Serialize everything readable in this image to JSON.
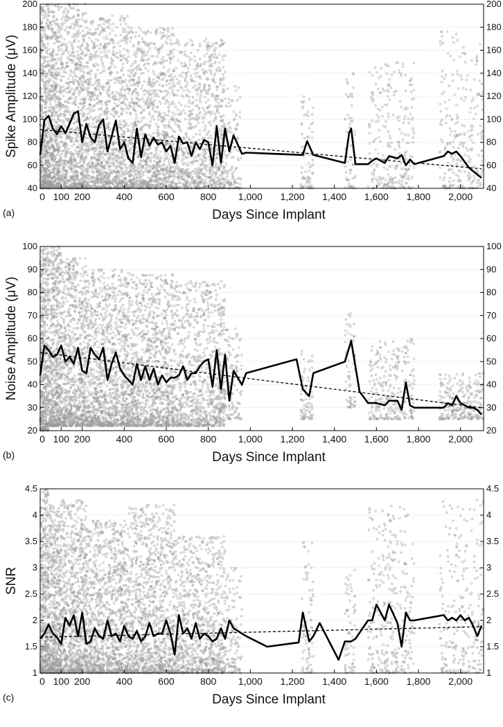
{
  "chart_data": [
    {
      "type": "scatter",
      "panel_label": "(a)",
      "xlabel": "Days Since Implant",
      "ylabel": "Spike Amplitude (μV)",
      "xlim": [
        0,
        2110
      ],
      "ylim": [
        40,
        200
      ],
      "grid": true,
      "x_ticks": [
        0,
        100,
        200,
        400,
        600,
        800,
        1000,
        1200,
        1400,
        1600,
        1800,
        2000
      ],
      "x_tick_labels": [
        "0",
        "100",
        "200",
        "400",
        "600",
        "800",
        "1,000",
        "1,200",
        "1,400",
        "1,600",
        "1,800",
        "2,000"
      ],
      "y_ticks": [
        40,
        60,
        80,
        100,
        120,
        140,
        160,
        180,
        200
      ],
      "y_tick_labels": [
        "40",
        "60",
        "80",
        "100",
        "120",
        "140",
        "160",
        "180",
        "200"
      ],
      "right_axis_ticks": true,
      "colors": {
        "scatter": "#9a9a9a",
        "mean_line": "#000000",
        "trend_line": "#000000"
      },
      "scatter_clusters": [
        {
          "x": [
            0,
            40
          ],
          "y": [
            40,
            200
          ],
          "density": 1.0
        },
        {
          "x": [
            40,
            100
          ],
          "y": [
            40,
            200
          ],
          "density": 0.8
        },
        {
          "x": [
            100,
            220
          ],
          "y": [
            40,
            200
          ],
          "density": 0.55
        },
        {
          "x": [
            220,
            420
          ],
          "y": [
            40,
            190
          ],
          "density": 0.45
        },
        {
          "x": [
            420,
            640
          ],
          "y": [
            40,
            180
          ],
          "density": 0.4
        },
        {
          "x": [
            640,
            880
          ],
          "y": [
            40,
            170
          ],
          "density": 0.3
        },
        {
          "x": [
            880,
            960
          ],
          "y": [
            40,
            130
          ],
          "density": 0.12
        },
        {
          "x": [
            1240,
            1300
          ],
          "y": [
            40,
            120
          ],
          "density": 0.1
        },
        {
          "x": [
            1450,
            1500
          ],
          "y": [
            40,
            140
          ],
          "density": 0.1
        },
        {
          "x": [
            1560,
            1780
          ],
          "y": [
            40,
            150
          ],
          "density": 0.1
        },
        {
          "x": [
            1900,
            2110
          ],
          "y": [
            40,
            180
          ],
          "density": 0.1
        }
      ],
      "mean_line": {
        "x": [
          0,
          20,
          40,
          60,
          80,
          100,
          120,
          140,
          160,
          180,
          200,
          220,
          240,
          260,
          280,
          300,
          320,
          340,
          360,
          380,
          400,
          420,
          440,
          460,
          480,
          500,
          520,
          540,
          560,
          580,
          600,
          620,
          640,
          660,
          680,
          700,
          720,
          740,
          760,
          780,
          800,
          820,
          840,
          860,
          880,
          900,
          920,
          960,
          980,
          1250,
          1270,
          1300,
          1450,
          1470,
          1480,
          1500,
          1560,
          1580,
          1600,
          1640,
          1660,
          1700,
          1720,
          1740,
          1760,
          1780,
          1920,
          1940,
          1960,
          1980,
          2000,
          2020,
          2040,
          2060,
          2080,
          2100
        ],
        "y": [
          69,
          99,
          103,
          92,
          87,
          94,
          88,
          96,
          105,
          107,
          80,
          96,
          84,
          80,
          95,
          100,
          72,
          85,
          99,
          74,
          80,
          66,
          62,
          92,
          67,
          87,
          77,
          84,
          78,
          80,
          72,
          77,
          62,
          85,
          79,
          80,
          68,
          80,
          74,
          82,
          80,
          60,
          94,
          62,
          92,
          72,
          86,
          70,
          71,
          69,
          81,
          69,
          62,
          88,
          92,
          61,
          61,
          64,
          66,
          62,
          68,
          66,
          69,
          60,
          65,
          61,
          68,
          72,
          70,
          72,
          68,
          63,
          58,
          55,
          52,
          49
        ]
      },
      "trend_line": {
        "x": [
          0,
          2100
        ],
        "y": [
          91,
          57
        ]
      }
    },
    {
      "type": "scatter",
      "panel_label": "(b)",
      "xlabel": "Days Since Implant",
      "ylabel": "Noise Amplitude (μV)",
      "xlim": [
        0,
        2110
      ],
      "ylim": [
        20,
        100
      ],
      "grid": true,
      "x_ticks": [
        0,
        100,
        200,
        400,
        600,
        800,
        1000,
        1200,
        1400,
        1600,
        1800,
        2000
      ],
      "x_tick_labels": [
        "0",
        "100",
        "200",
        "400",
        "600",
        "800",
        "1,000",
        "1,200",
        "1,400",
        "1,600",
        "1,800",
        "2,000"
      ],
      "y_ticks": [
        20,
        30,
        40,
        50,
        60,
        70,
        80,
        90,
        100
      ],
      "y_tick_labels": [
        "20",
        "30",
        "40",
        "50",
        "60",
        "70",
        "80",
        "90",
        "100"
      ],
      "right_axis_ticks": true,
      "colors": {
        "scatter": "#9a9a9a",
        "mean_line": "#000000",
        "trend_line": "#000000"
      },
      "scatter_clusters": [
        {
          "x": [
            0,
            40
          ],
          "y": [
            20,
            100
          ],
          "density": 1.0
        },
        {
          "x": [
            40,
            100
          ],
          "y": [
            22,
            100
          ],
          "density": 0.8
        },
        {
          "x": [
            100,
            220
          ],
          "y": [
            22,
            95
          ],
          "density": 0.55
        },
        {
          "x": [
            220,
            420
          ],
          "y": [
            22,
            90
          ],
          "density": 0.45
        },
        {
          "x": [
            420,
            640
          ],
          "y": [
            22,
            88
          ],
          "density": 0.4
        },
        {
          "x": [
            640,
            880
          ],
          "y": [
            22,
            85
          ],
          "density": 0.3
        },
        {
          "x": [
            880,
            960
          ],
          "y": [
            25,
            65
          ],
          "density": 0.12
        },
        {
          "x": [
            1240,
            1300
          ],
          "y": [
            25,
            55
          ],
          "density": 0.1
        },
        {
          "x": [
            1450,
            1500
          ],
          "y": [
            30,
            72
          ],
          "density": 0.1
        },
        {
          "x": [
            1560,
            1780
          ],
          "y": [
            25,
            60
          ],
          "density": 0.1
        },
        {
          "x": [
            1900,
            2110
          ],
          "y": [
            25,
            45
          ],
          "density": 0.1
        }
      ],
      "mean_line": {
        "x": [
          0,
          20,
          40,
          60,
          80,
          100,
          120,
          140,
          160,
          180,
          200,
          220,
          240,
          260,
          280,
          300,
          320,
          340,
          360,
          380,
          400,
          420,
          440,
          460,
          480,
          500,
          520,
          540,
          560,
          580,
          600,
          620,
          640,
          660,
          680,
          700,
          720,
          740,
          760,
          780,
          800,
          820,
          840,
          860,
          880,
          900,
          920,
          960,
          980,
          1220,
          1250,
          1280,
          1300,
          1450,
          1480,
          1520,
          1560,
          1580,
          1600,
          1640,
          1660,
          1700,
          1720,
          1740,
          1760,
          1780,
          1920,
          1940,
          1960,
          1980,
          2000,
          2020,
          2040,
          2060,
          2080,
          2100
        ],
        "y": [
          44,
          57,
          55,
          52,
          53,
          57,
          50,
          52,
          49,
          56,
          46,
          45,
          56,
          53,
          51,
          56,
          42,
          49,
          54,
          47,
          44,
          42,
          40,
          49,
          42,
          48,
          42,
          47,
          40,
          44,
          41,
          43,
          43,
          44,
          48,
          42,
          45,
          45,
          48,
          50,
          51,
          39,
          55,
          38,
          53,
          33,
          46,
          40,
          45,
          51,
          38,
          35,
          45,
          50,
          59,
          37,
          32,
          32,
          32,
          31,
          33,
          33,
          29,
          41,
          31,
          30,
          30,
          32,
          31,
          35,
          32,
          31,
          30,
          30,
          29,
          27
        ]
      },
      "trend_line": {
        "x": [
          0,
          2100
        ],
        "y": [
          54,
          30
        ]
      }
    },
    {
      "type": "scatter",
      "panel_label": "(c)",
      "xlabel": "Days Since Implant",
      "ylabel": "SNR",
      "xlim": [
        0,
        2110
      ],
      "ylim": [
        1,
        4.5
      ],
      "grid": true,
      "x_ticks": [
        0,
        100,
        200,
        400,
        600,
        800,
        1000,
        1200,
        1400,
        1600,
        1800,
        2000
      ],
      "x_tick_labels": [
        "0",
        "100",
        "200",
        "400",
        "600",
        "800",
        "1,000",
        "1,200",
        "1,400",
        "1,600",
        "1,800",
        "2,000"
      ],
      "y_ticks": [
        1,
        1.5,
        2,
        2.5,
        3,
        3.5,
        4,
        4.5
      ],
      "y_tick_labels": [
        "1",
        "1.5",
        "2",
        "2.5",
        "3",
        "3.5",
        "4",
        "4.5"
      ],
      "right_axis_ticks": true,
      "colors": {
        "scatter": "#9a9a9a",
        "mean_line": "#000000",
        "trend_line": "#000000"
      },
      "scatter_clusters": [
        {
          "x": [
            0,
            40
          ],
          "y": [
            1,
            4.5
          ],
          "density": 1.0
        },
        {
          "x": [
            40,
            100
          ],
          "y": [
            1,
            4.2
          ],
          "density": 0.8
        },
        {
          "x": [
            100,
            220
          ],
          "y": [
            1,
            4.3
          ],
          "density": 0.55
        },
        {
          "x": [
            220,
            420
          ],
          "y": [
            1,
            3.9
          ],
          "density": 0.45
        },
        {
          "x": [
            420,
            640
          ],
          "y": [
            1,
            4.2
          ],
          "density": 0.4
        },
        {
          "x": [
            640,
            880
          ],
          "y": [
            1,
            3.6
          ],
          "density": 0.3
        },
        {
          "x": [
            880,
            960
          ],
          "y": [
            1,
            3.0
          ],
          "density": 0.12
        },
        {
          "x": [
            1240,
            1300
          ],
          "y": [
            1,
            3.5
          ],
          "density": 0.1
        },
        {
          "x": [
            1450,
            1500
          ],
          "y": [
            1,
            3.0
          ],
          "density": 0.1
        },
        {
          "x": [
            1560,
            1780
          ],
          "y": [
            1,
            4.2
          ],
          "density": 0.12
        },
        {
          "x": [
            1900,
            2110
          ],
          "y": [
            1,
            4.3
          ],
          "density": 0.1
        }
      ],
      "mean_line": {
        "x": [
          0,
          20,
          40,
          60,
          80,
          100,
          120,
          140,
          160,
          180,
          200,
          220,
          240,
          260,
          280,
          300,
          320,
          340,
          360,
          380,
          400,
          420,
          440,
          460,
          480,
          500,
          520,
          540,
          560,
          580,
          600,
          620,
          640,
          660,
          680,
          700,
          720,
          740,
          760,
          780,
          800,
          820,
          840,
          860,
          880,
          900,
          920,
          960,
          980,
          1080,
          1230,
          1250,
          1280,
          1300,
          1330,
          1420,
          1450,
          1480,
          1500,
          1560,
          1580,
          1600,
          1640,
          1660,
          1700,
          1720,
          1740,
          1760,
          1780,
          1920,
          1940,
          1960,
          1980,
          2000,
          2020,
          2040,
          2060,
          2080,
          2100
        ],
        "y": [
          1.65,
          1.75,
          1.92,
          1.75,
          1.68,
          1.55,
          2.05,
          1.9,
          2.1,
          1.7,
          2.15,
          1.55,
          1.6,
          1.85,
          1.7,
          1.65,
          2.0,
          1.7,
          1.75,
          1.6,
          1.9,
          1.7,
          1.65,
          1.8,
          1.6,
          1.7,
          1.95,
          1.7,
          1.75,
          1.75,
          2.0,
          1.75,
          1.35,
          2.1,
          1.75,
          1.85,
          1.65,
          1.95,
          1.65,
          1.75,
          1.7,
          1.6,
          1.65,
          1.85,
          1.65,
          2.0,
          1.85,
          1.75,
          1.7,
          1.5,
          1.58,
          2.15,
          1.6,
          1.7,
          1.95,
          1.25,
          1.6,
          1.6,
          1.65,
          2.0,
          2.0,
          2.3,
          2.0,
          2.3,
          1.95,
          1.5,
          2.15,
          2.0,
          2.0,
          2.1,
          2.0,
          2.05,
          2.0,
          2.1,
          2.0,
          2.05,
          1.9,
          1.7,
          1.9
        ]
      },
      "trend_line": {
        "x": [
          0,
          2100
        ],
        "y": [
          1.68,
          1.88
        ]
      }
    }
  ]
}
